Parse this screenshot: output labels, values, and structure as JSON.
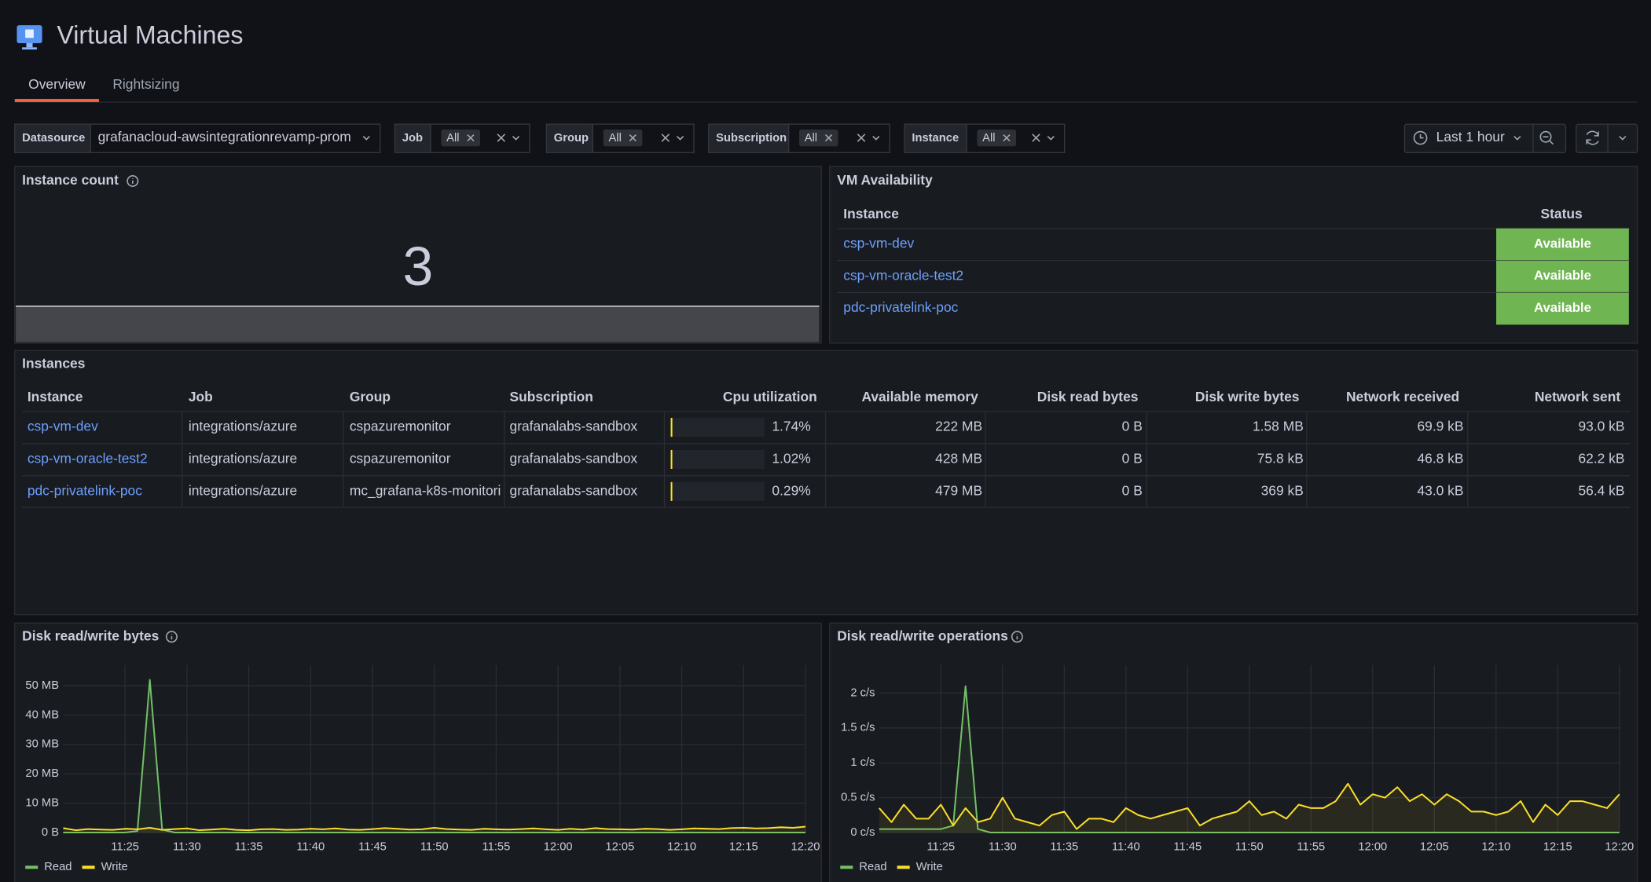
{
  "header": {
    "title": "Virtual Machines",
    "tabs": [
      "Overview",
      "Rightsizing"
    ]
  },
  "filters": [
    {
      "label": "Datasource",
      "value": "grafanacloud-awsintegrationrevamp-prom"
    },
    {
      "label": "Job",
      "value": "All"
    },
    {
      "label": "Group",
      "value": "All"
    },
    {
      "label": "Subscription",
      "value": "All"
    },
    {
      "label": "Instance",
      "value": "All"
    }
  ],
  "time_range": "Last 1 hour",
  "instance_count": {
    "title": "Instance count",
    "value": 3
  },
  "vm_availability": {
    "title": "VM Availability",
    "columns": [
      "Instance",
      "Status"
    ],
    "rows": [
      [
        "csp-vm-dev",
        "Available"
      ],
      [
        "csp-vm-oracle-test2",
        "Available"
      ],
      [
        "pdc-privatelink-poc",
        "Available"
      ]
    ]
  },
  "instances": {
    "title": "Instances",
    "columns": [
      "Instance",
      "Job",
      "Group",
      "Subscription",
      "Cpu utilization",
      "Available memory",
      "Disk read bytes",
      "Disk write bytes",
      "Network received",
      "Network sent"
    ],
    "rows": [
      [
        "csp-vm-dev",
        "integrations/azure",
        "cspazuremonitor",
        "grafanalabs-sandbox",
        {
          "value": 1.74,
          "label": "1.74%"
        },
        "222 MB",
        "0 B",
        "1.58 MB",
        "69.9 kB",
        "93.0 kB"
      ],
      [
        "csp-vm-oracle-test2",
        "integrations/azure",
        "cspazuremonitor",
        "grafanalabs-sandbox",
        {
          "value": 1.02,
          "label": "1.02%"
        },
        "428 MB",
        "0 B",
        "75.8 kB",
        "46.8 kB",
        "62.2 kB"
      ],
      [
        "pdc-privatelink-poc",
        "integrations/azure",
        "mc_grafana-k8s-monitori",
        "grafanalabs-sandbox",
        {
          "value": 0.29,
          "label": "0.29%"
        },
        "479 MB",
        "0 B",
        "369 kB",
        "43.0 kB",
        "56.4 kB"
      ]
    ]
  },
  "chart_data": [
    {
      "type": "line",
      "title": "Disk read/write bytes",
      "x": [
        null,
        null,
        null,
        null,
        null,
        "11:25",
        null,
        null,
        null,
        null,
        "11:30",
        null,
        null,
        null,
        null,
        "11:35",
        null,
        null,
        null,
        null,
        "11:40",
        null,
        null,
        null,
        null,
        "11:45",
        null,
        null,
        null,
        null,
        "11:50",
        null,
        null,
        null,
        null,
        "11:55",
        null,
        null,
        null,
        null,
        "12:00",
        null,
        null,
        null,
        null,
        "12:05",
        null,
        null,
        null,
        null,
        "12:10",
        null,
        null,
        null,
        null,
        "12:15",
        null,
        null,
        null,
        null,
        "12:20"
      ],
      "series": [
        {
          "name": "Read",
          "color": "#73bf69",
          "values": [
            0,
            0,
            0,
            0,
            0,
            0,
            0.5,
            52,
            1,
            0,
            0,
            0,
            0,
            0,
            0,
            0,
            0,
            0,
            0,
            0,
            0,
            0,
            0,
            0,
            0,
            0,
            0,
            0,
            0,
            0,
            0,
            0,
            0,
            0,
            0,
            0,
            0,
            0,
            0,
            0,
            0,
            0,
            0,
            0,
            0,
            0,
            0,
            0,
            0,
            0,
            0,
            0,
            0,
            0,
            0,
            0,
            0,
            0,
            0,
            0,
            0
          ]
        },
        {
          "name": "Write",
          "color": "#fade2a",
          "values": [
            1.5,
            0.8,
            1.2,
            1.0,
            0.9,
            1.3,
            1.1,
            1.6,
            0.9,
            1.2,
            1.4,
            0.8,
            1.0,
            1.3,
            0.9,
            0.8,
            1.1,
            1.2,
            0.9,
            1.0,
            1.3,
            1.1,
            1.4,
            1.0,
            0.9,
            1.2,
            1.5,
            1.3,
            1.0,
            1.1,
            1.6,
            1.2,
            1.0,
            0.9,
            1.3,
            1.1,
            1.0,
            1.2,
            1.4,
            1.1,
            0.9,
            1.3,
            1.0,
            1.5,
            1.2,
            1.1,
            1.0,
            1.3,
            1.2,
            0.9,
            1.1,
            1.4,
            1.3,
            1.2,
            1.5,
            1.6,
            1.4,
            1.5,
            1.8,
            1.6,
            2.0
          ]
        }
      ],
      "ylim": [
        0,
        57
      ],
      "yticks": [
        {
          "value": 0,
          "label": "0 B"
        },
        {
          "value": 10,
          "label": "10 MB"
        },
        {
          "value": 20,
          "label": "20 MB"
        },
        {
          "value": 30,
          "label": "30 MB"
        },
        {
          "value": 40,
          "label": "40 MB"
        },
        {
          "value": 50,
          "label": "50 MB"
        }
      ],
      "grid": true
    },
    {
      "type": "line",
      "title": "Disk read/write operations",
      "x": [
        null,
        null,
        null,
        null,
        null,
        "11:25",
        null,
        null,
        null,
        null,
        "11:30",
        null,
        null,
        null,
        null,
        "11:35",
        null,
        null,
        null,
        null,
        "11:40",
        null,
        null,
        null,
        null,
        "11:45",
        null,
        null,
        null,
        null,
        "11:50",
        null,
        null,
        null,
        null,
        "11:55",
        null,
        null,
        null,
        null,
        "12:00",
        null,
        null,
        null,
        null,
        "12:05",
        null,
        null,
        null,
        null,
        "12:10",
        null,
        null,
        null,
        null,
        "12:15",
        null,
        null,
        null,
        null,
        "12:20"
      ],
      "series": [
        {
          "name": "Read",
          "color": "#73bf69",
          "values": [
            0.05,
            0.05,
            0.05,
            0.05,
            0.05,
            0.05,
            0.1,
            2.1,
            0.05,
            0,
            0,
            0,
            0,
            0,
            0,
            0,
            0,
            0,
            0,
            0,
            0,
            0,
            0,
            0,
            0,
            0,
            0,
            0,
            0,
            0,
            0,
            0,
            0,
            0,
            0,
            0,
            0,
            0,
            0,
            0,
            0,
            0,
            0,
            0,
            0,
            0,
            0,
            0,
            0,
            0,
            0,
            0,
            0,
            0,
            0,
            0,
            0,
            0,
            0,
            0,
            0
          ]
        },
        {
          "name": "Write",
          "color": "#fade2a",
          "values": [
            0.35,
            0.15,
            0.4,
            0.2,
            0.2,
            0.4,
            0.1,
            0.35,
            0.15,
            0.2,
            0.5,
            0.2,
            0.15,
            0.1,
            0.25,
            0.3,
            0.05,
            0.2,
            0.2,
            0.15,
            0.35,
            0.25,
            0.2,
            0.25,
            0.3,
            0.35,
            0.1,
            0.2,
            0.25,
            0.3,
            0.45,
            0.25,
            0.3,
            0.2,
            0.4,
            0.35,
            0.35,
            0.45,
            0.7,
            0.4,
            0.55,
            0.5,
            0.65,
            0.45,
            0.55,
            0.4,
            0.55,
            0.45,
            0.3,
            0.3,
            0.25,
            0.3,
            0.45,
            0.15,
            0.4,
            0.25,
            0.45,
            0.45,
            0.4,
            0.35,
            0.55
          ]
        }
      ],
      "ylim": [
        0,
        2.4
      ],
      "yticks": [
        {
          "value": 0,
          "label": "0 c/s"
        },
        {
          "value": 0.5,
          "label": "0.5 c/s"
        },
        {
          "value": 1,
          "label": "1 c/s"
        },
        {
          "value": 1.5,
          "label": "1.5 c/s"
        },
        {
          "value": 2,
          "label": "2 c/s"
        }
      ],
      "grid": true
    }
  ]
}
